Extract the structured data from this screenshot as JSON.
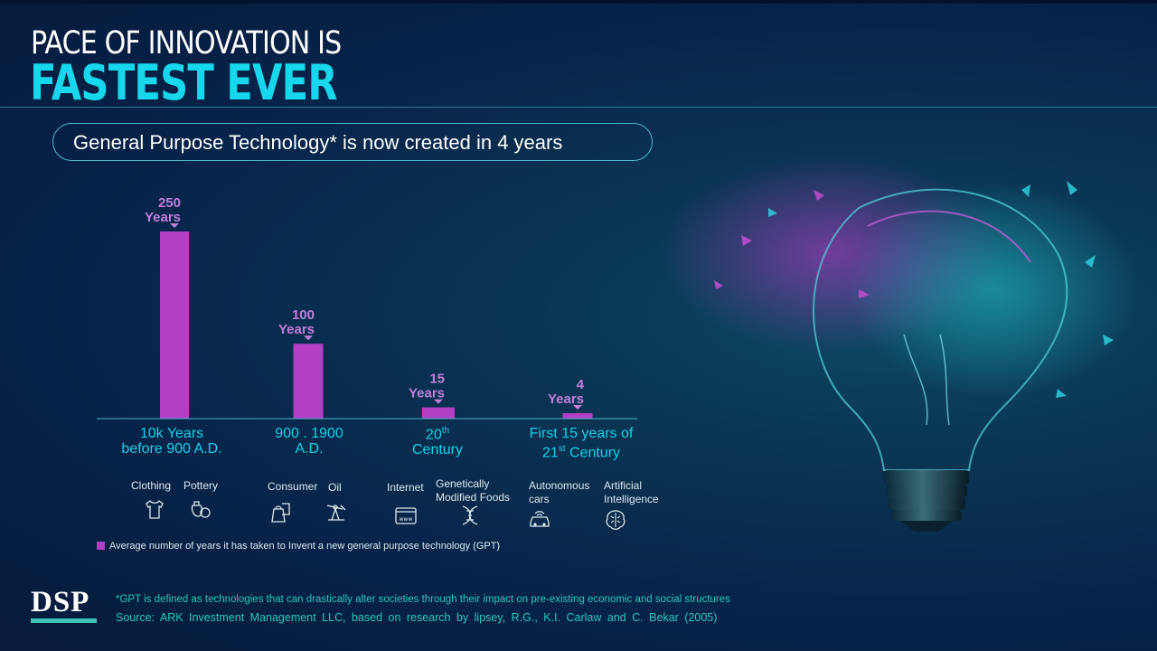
{
  "header": {
    "title_line1": "PACE OF INNOVATION IS",
    "title_line2": "FASTEST EVER",
    "subtitle": "General Purpose Technology* is now created in 4 years"
  },
  "chart_data": {
    "type": "bar",
    "categories": [
      "10k Years before 900 A.D.",
      "900 . 1900 A.D.",
      "20th Century",
      "First 15 years of 21st Century"
    ],
    "series": [
      {
        "name": "Average number of years it has taken to Invent a new general purpose technology (GPT)",
        "values": [
          250,
          100,
          15,
          4
        ]
      }
    ],
    "value_unit": "Years",
    "bar_color": "#b23fc6",
    "label_color": "#c27fdc",
    "legend": "bottom-left"
  },
  "x_labels": [
    {
      "line1": "10k Years",
      "line2": "before 900 A.D."
    },
    {
      "line1": "900 . 1900",
      "line2": "A.D."
    },
    {
      "line1": "20",
      "sup": "th",
      "line2": "Century"
    },
    {
      "line1": "First  15 years of",
      "line2a": "21",
      "sup": "st",
      "line2b": " Century"
    }
  ],
  "technologies": [
    {
      "label": "Clothing",
      "icon": "tshirt-icon"
    },
    {
      "label": "Pottery",
      "icon": "pottery-icon"
    },
    {
      "label": "Consumer",
      "icon": "consumer-goods-icon"
    },
    {
      "label": "Oil",
      "icon": "oil-pump-icon"
    },
    {
      "label": "Internet",
      "icon": "internet-browser-icon"
    },
    {
      "label": "Genetically",
      "label2": "Modified Foods",
      "icon": "dna-icon"
    },
    {
      "label": "Autonomous",
      "label2": "cars",
      "icon": "autonomous-car-icon"
    },
    {
      "label": "Artificial",
      "label2": "Intelligence",
      "icon": "ai-brain-icon"
    }
  ],
  "legend_text": "Average number of years it has taken to Invent a new general purpose technology (GPT)",
  "footer": {
    "logo": "DSP",
    "note": "*GPT is defined as technologies that can drastically alter societies through their impact on pre-existing economic and social structures",
    "source": "Source: ARK Investment Management LLC, based on research by lipsey, R.G., K.I. Carlaw and C. Bekar (2005)"
  },
  "colors": {
    "accent": "#17d7ec",
    "footer_text": "#27c8b6",
    "logo_bar": "#3ec4b5"
  }
}
